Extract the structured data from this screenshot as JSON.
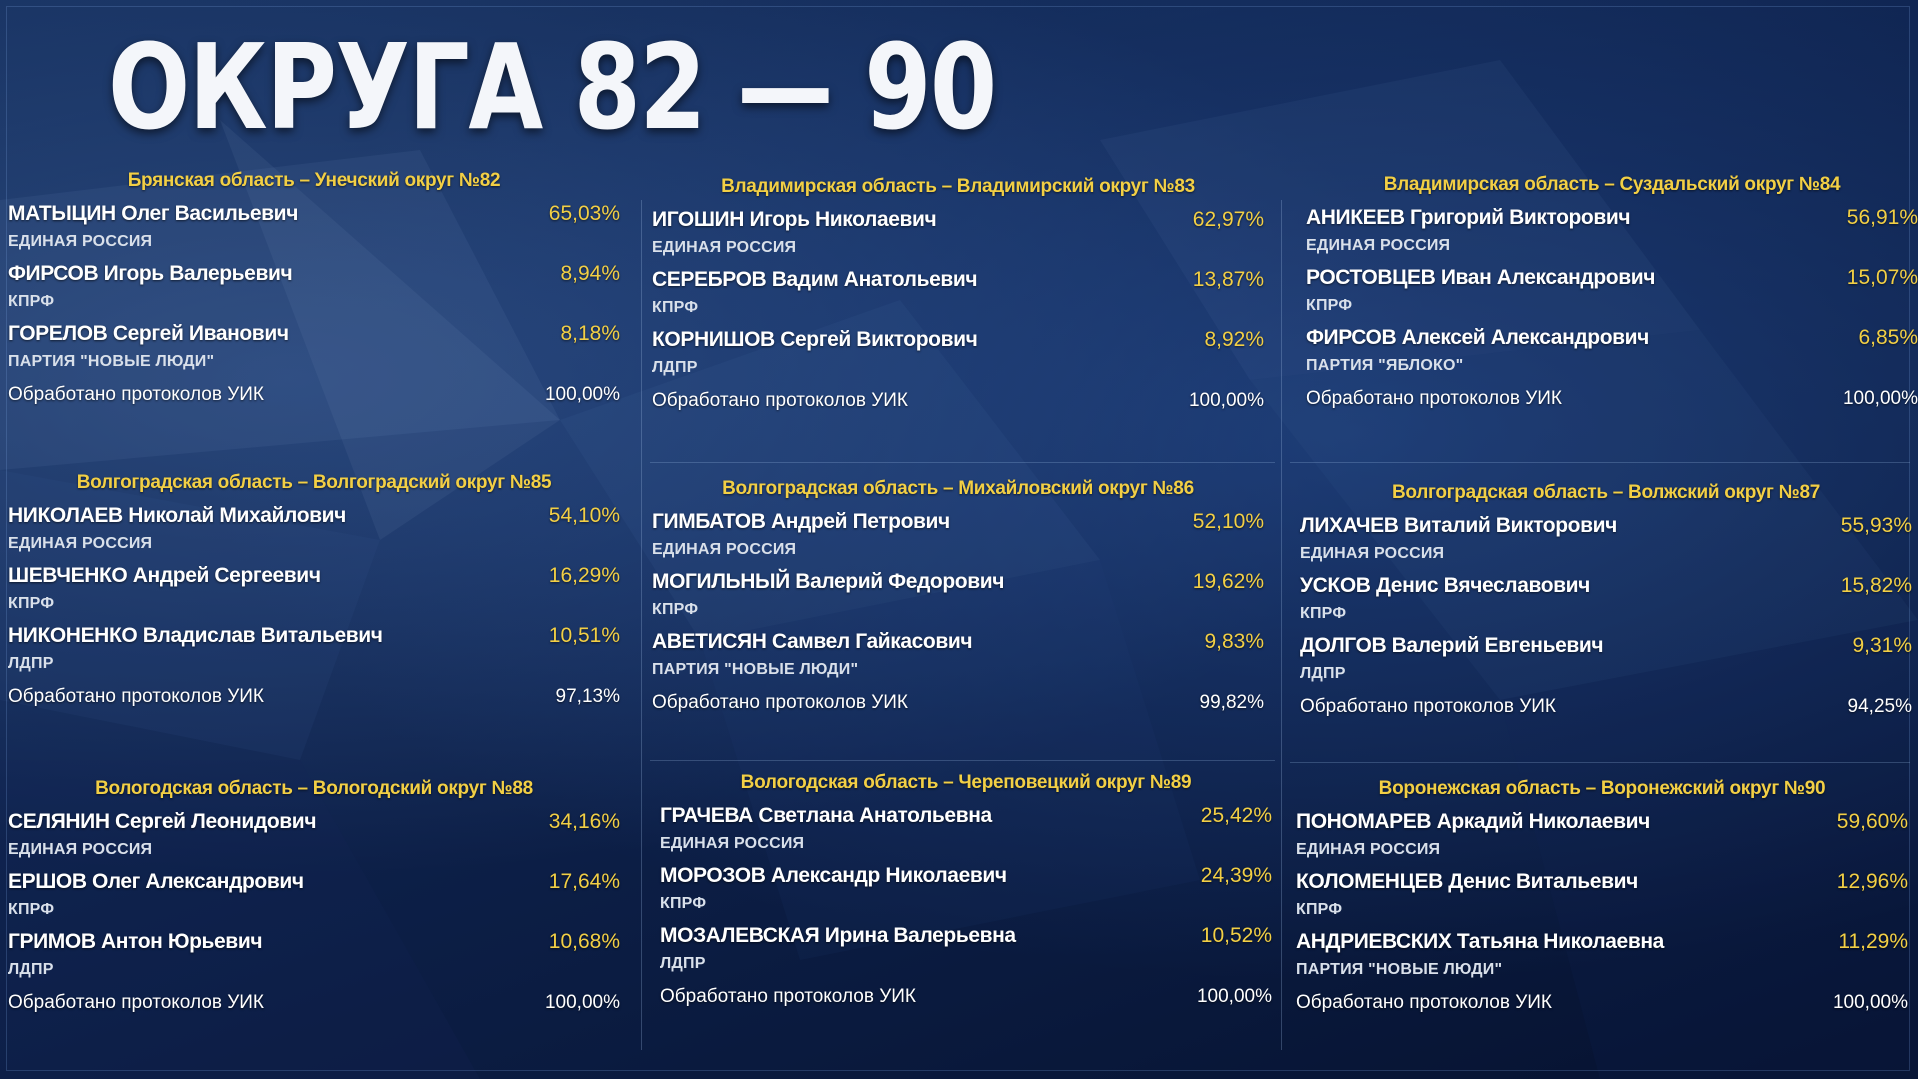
{
  "title": "ОКРУГА 82 — 90",
  "protocol_label": "Обработано протоколов УИК",
  "districts": [
    {
      "title": "Брянская область – Унечский округ №82",
      "candidates": [
        {
          "name": "МАТЫЦИН Олег Васильевич",
          "percent": "65,03%",
          "party": "ЕДИНАЯ РОССИЯ"
        },
        {
          "name": "ФИРСОВ Игорь Валерьевич",
          "percent": "8,94%",
          "party": "КПРФ"
        },
        {
          "name": "ГОРЕЛОВ Сергей Иванович",
          "percent": "8,18%",
          "party": "ПАРТИЯ \"НОВЫЕ ЛЮДИ\""
        }
      ],
      "protocols": "100,00%"
    },
    {
      "title": "Владимирская область – Владимирский округ №83",
      "candidates": [
        {
          "name": "ИГОШИН Игорь Николаевич",
          "percent": "62,97%",
          "party": "ЕДИНАЯ РОССИЯ"
        },
        {
          "name": "СЕРЕБРОВ Вадим Анатольевич",
          "percent": "13,87%",
          "party": "КПРФ"
        },
        {
          "name": "КОРНИШОВ Сергей Викторович",
          "percent": "8,92%",
          "party": "ЛДПР"
        }
      ],
      "protocols": "100,00%"
    },
    {
      "title": "Владимирская область – Суздальский округ №84",
      "candidates": [
        {
          "name": "АНИКЕЕВ Григорий Викторович",
          "percent": "56,91%",
          "party": "ЕДИНАЯ РОССИЯ"
        },
        {
          "name": "РОСТОВЦЕВ Иван Александрович",
          "percent": "15,07%",
          "party": "КПРФ"
        },
        {
          "name": "ФИРСОВ Алексей Александрович",
          "percent": "6,85%",
          "party": "ПАРТИЯ \"ЯБЛОКО\""
        }
      ],
      "protocols": "100,00%"
    },
    {
      "title": "Волгоградская область – Волгоградский округ №85",
      "candidates": [
        {
          "name": "НИКОЛАЕВ Николай Михайлович",
          "percent": "54,10%",
          "party": "ЕДИНАЯ РОССИЯ"
        },
        {
          "name": "ШЕВЧЕНКО Андрей Сергеевич",
          "percent": "16,29%",
          "party": "КПРФ"
        },
        {
          "name": "НИКОНЕНКО Владислав Витальевич",
          "percent": "10,51%",
          "party": "ЛДПР"
        }
      ],
      "protocols": "97,13%"
    },
    {
      "title": "Волгоградская область – Михайловский округ №86",
      "candidates": [
        {
          "name": "ГИМБАТОВ Андрей Петрович",
          "percent": "52,10%",
          "party": "ЕДИНАЯ РОССИЯ"
        },
        {
          "name": "МОГИЛЬНЫЙ Валерий Федорович",
          "percent": "19,62%",
          "party": "КПРФ"
        },
        {
          "name": "АВЕТИСЯН Самвел Гайкасович",
          "percent": "9,83%",
          "party": "ПАРТИЯ \"НОВЫЕ ЛЮДИ\""
        }
      ],
      "protocols": "99,82%"
    },
    {
      "title": "Волгоградская область – Волжский округ №87",
      "candidates": [
        {
          "name": "ЛИХАЧЕВ Виталий Викторович",
          "percent": "55,93%",
          "party": "ЕДИНАЯ РОССИЯ"
        },
        {
          "name": "УСКОВ Денис Вячеславович",
          "percent": "15,82%",
          "party": "КПРФ"
        },
        {
          "name": "ДОЛГОВ Валерий Евгеньевич",
          "percent": "9,31%",
          "party": "ЛДПР"
        }
      ],
      "protocols": "94,25%"
    },
    {
      "title": "Вологодская область – Вологодский округ №88",
      "candidates": [
        {
          "name": "СЕЛЯНИН Сергей Леонидович",
          "percent": "34,16%",
          "party": "ЕДИНАЯ РОССИЯ"
        },
        {
          "name": "ЕРШОВ Олег Александрович",
          "percent": "17,64%",
          "party": "КПРФ"
        },
        {
          "name": "ГРИМОВ Антон Юрьевич",
          "percent": "10,68%",
          "party": "ЛДПР"
        }
      ],
      "protocols": "100,00%"
    },
    {
      "title": "Вологодская область – Череповецкий округ №89",
      "candidates": [
        {
          "name": "ГРАЧЕВА Светлана Анатольевна",
          "percent": "25,42%",
          "party": "ЕДИНАЯ РОССИЯ"
        },
        {
          "name": "МОРОЗОВ Александр Николаевич",
          "percent": "24,39%",
          "party": "КПРФ"
        },
        {
          "name": "МОЗАЛЕВСКАЯ Ирина Валерьевна",
          "percent": "10,52%",
          "party": "ЛДПР"
        }
      ],
      "protocols": "100,00%"
    },
    {
      "title": "Воронежская область – Воронежский округ №90",
      "candidates": [
        {
          "name": "ПОНОМАРЕВ Аркадий Николаевич",
          "percent": "59,60%",
          "party": "ЕДИНАЯ РОССИЯ"
        },
        {
          "name": "КОЛОМЕНЦЕВ Денис Витальевич",
          "percent": "12,96%",
          "party": "КПРФ"
        },
        {
          "name": "АНДРИЕВСКИХ Татьяна Николаевна",
          "percent": "11,29%",
          "party": "ПАРТИЯ \"НОВЫЕ ЛЮДИ\""
        }
      ],
      "protocols": "100,00%"
    }
  ]
}
